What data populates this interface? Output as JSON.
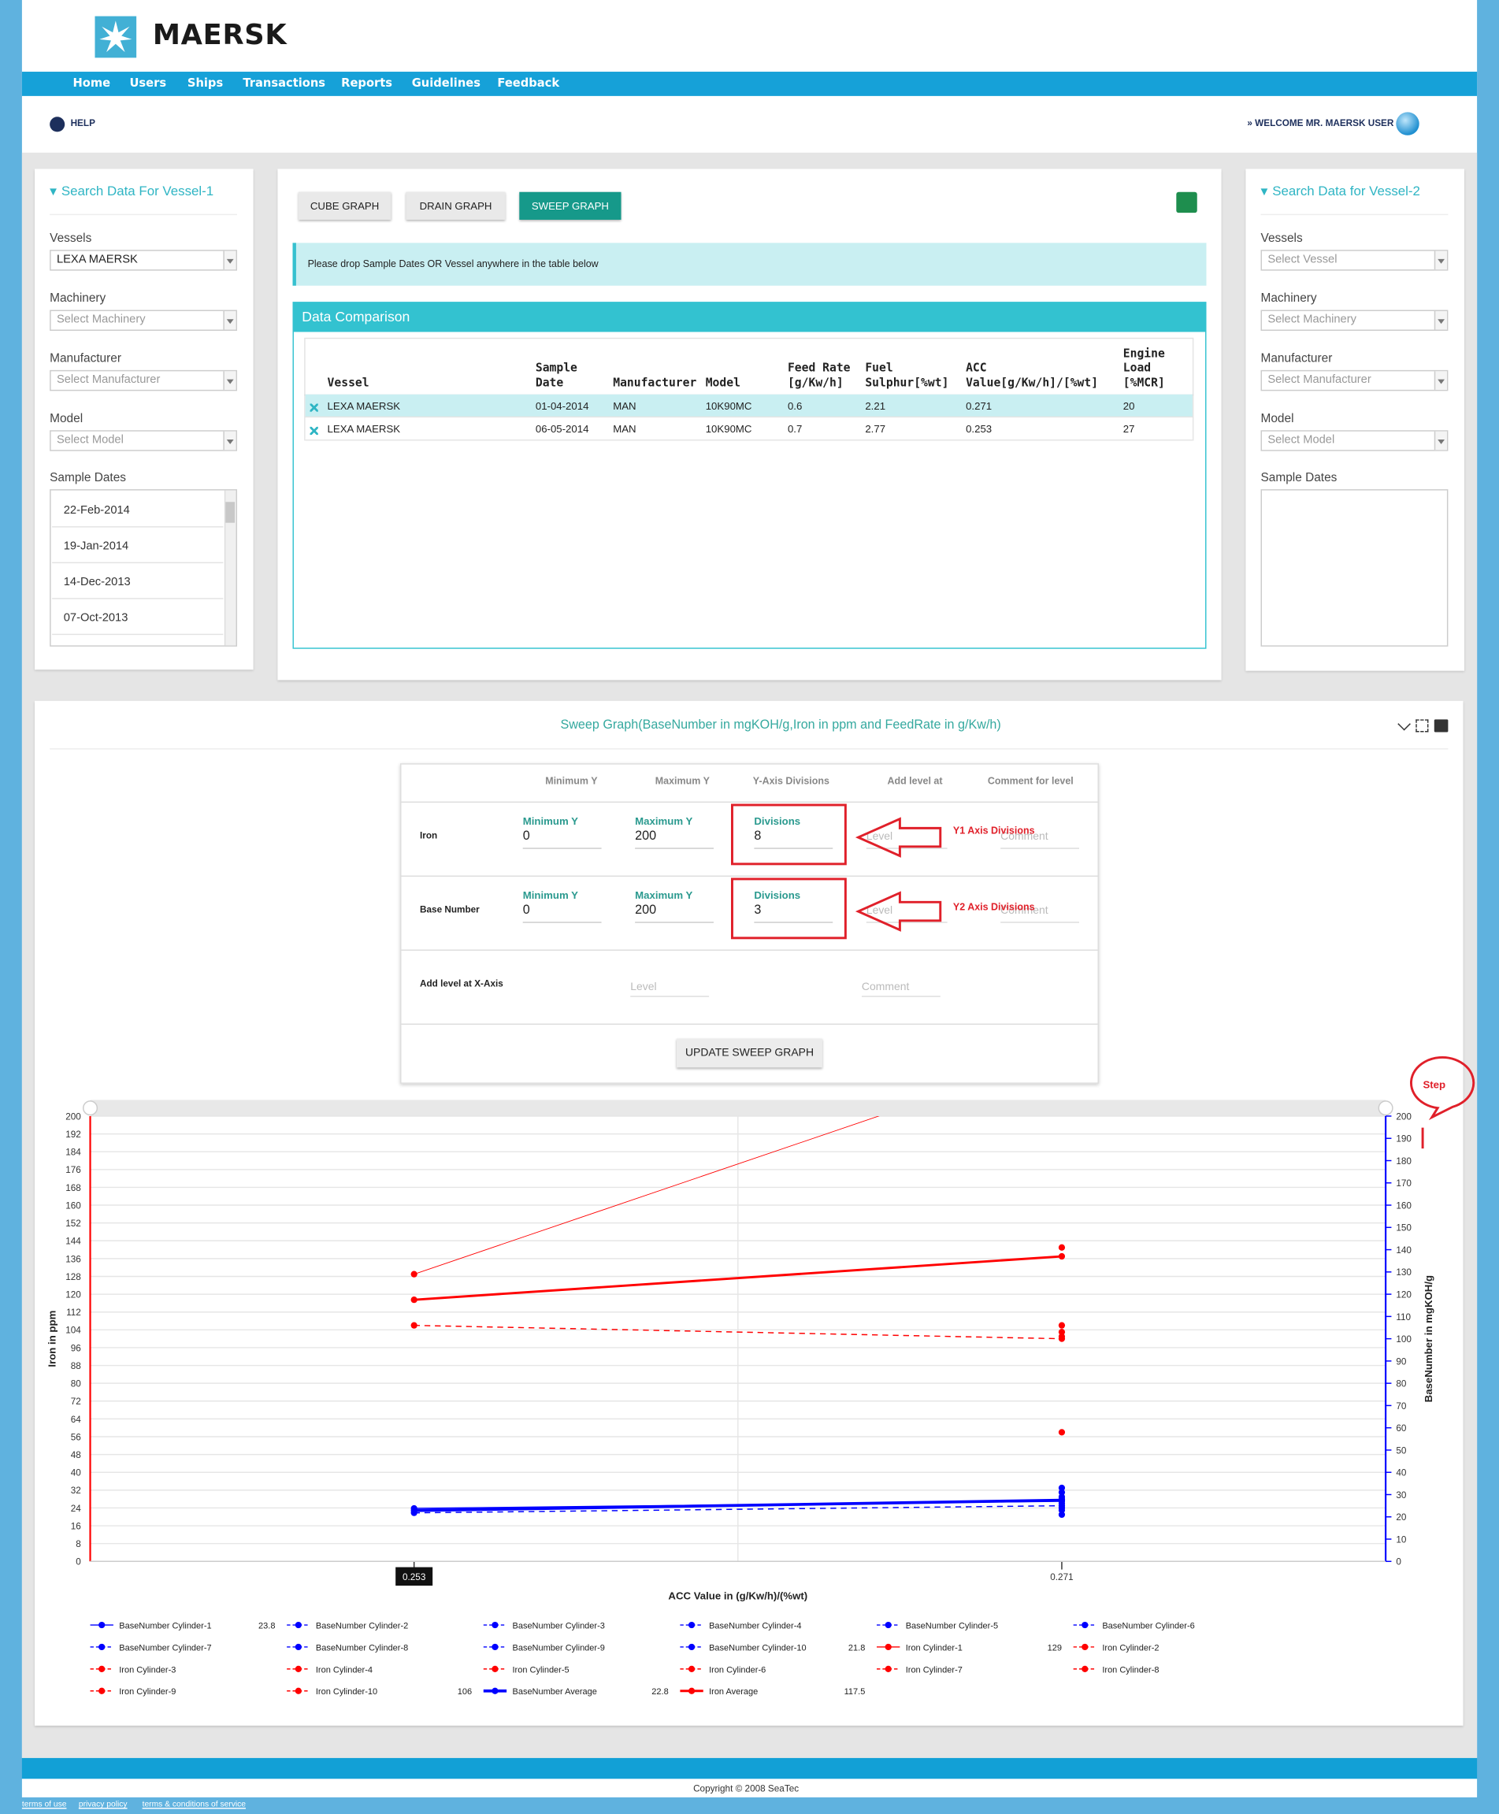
{
  "header": {
    "brand": "MAERSK",
    "nav": [
      "Home",
      "Users",
      "Ships",
      "Transactions",
      "Reports",
      "Guidelines",
      "Feedback"
    ],
    "help": "HELP",
    "welcome": "» WELCOME MR. MAERSK USER"
  },
  "vessel1": {
    "title": "Search Data For Vessel-1",
    "fields": [
      {
        "label": "Vessels",
        "value": "LEXA MAERSK"
      },
      {
        "label": "Machinery",
        "value": "Select Machinery"
      },
      {
        "label": "Manufacturer",
        "value": "Select Manufacturer"
      },
      {
        "label": "Model",
        "value": "Select Model"
      }
    ],
    "sample_dates_label": "Sample Dates",
    "sample_dates": [
      "22-Feb-2014",
      "19-Jan-2014",
      "14-Dec-2013",
      "07-Oct-2013"
    ]
  },
  "vessel2": {
    "title": "Search Data for Vessel-2",
    "fields": [
      {
        "label": "Vessels",
        "value": "Select Vessel"
      },
      {
        "label": "Machinery",
        "value": "Select Machinery"
      },
      {
        "label": "Manufacturer",
        "value": "Select Manufacturer"
      },
      {
        "label": "Model",
        "value": "Select Model"
      }
    ],
    "sample_dates_label": "Sample Dates"
  },
  "graph_buttons": [
    "CUBE GRAPH",
    "DRAIN GRAPH",
    "SWEEP GRAPH"
  ],
  "info": "Please drop Sample Dates OR Vessel anywhere in the table below",
  "comparison": {
    "title": "Data Comparison",
    "columns": [
      "Vessel",
      "Sample Date",
      "Manufacturer",
      "Model",
      "Feed Rate [g/Kw/h]",
      "Fuel Sulphur[%wt]",
      "ACC Value[g/Kw/h]/[%wt]",
      "Engine Load [%MCR]"
    ],
    "rows": [
      [
        "LEXA MAERSK",
        "01-04-2014",
        "MAN",
        "10K90MC",
        0.6,
        2.21,
        0.271,
        20
      ],
      [
        "LEXA MAERSK",
        "06-05-2014",
        "MAN",
        "10K90MC",
        0.7,
        2.77,
        0.253,
        27
      ]
    ]
  },
  "sweep": {
    "title": "Sweep Graph(BaseNumber in mgKOH/g,Iron in ppm and FeedRate in g/Kw/h)",
    "settings": {
      "columns": [
        "Minimum Y",
        "Maximum Y",
        "Y-Axis Divisions",
        "Add level at",
        "Comment for level"
      ],
      "rows": [
        {
          "name": "Iron",
          "min_label": "Minimum Y",
          "min": 0,
          "max_label": "Maximum Y",
          "max": 200,
          "div_label": "Divisions",
          "div": 8,
          "level": "Level",
          "comment": "Comment"
        },
        {
          "name": "Base Number",
          "min_label": "Minimum Y",
          "min": 0,
          "max_label": "Maximum Y",
          "max": 200,
          "div_label": "Divisions",
          "div": 3,
          "level": "Level",
          "comment": "Comment"
        }
      ],
      "x_level": {
        "name": "Add level at X-Axis",
        "level": "Level",
        "comment": "Comment"
      },
      "button": "UPDATE SWEEP GRAPH"
    },
    "annotations": [
      "Y1 Axis Divisions",
      "Y2 Axis Divisions",
      "Step"
    ]
  },
  "chart_data": {
    "type": "line",
    "x_label": "ACC Value in (g/Kw/h)/(%wt)",
    "y_label": "Iron in ppm",
    "y2_label": "BaseNumber in mgKOH/g",
    "x": [
      0.253,
      0.271
    ],
    "xlim": [
      0.244,
      0.28
    ],
    "xticks": [
      0.253,
      0.271
    ],
    "ylim": [
      0,
      200
    ],
    "yticks": [
      0,
      8,
      16,
      24,
      32,
      40,
      48,
      56,
      64,
      72,
      80,
      88,
      96,
      104,
      112,
      120,
      128,
      136,
      144,
      152,
      160,
      168,
      176,
      184,
      192,
      200
    ],
    "y2lim": [
      0,
      200
    ],
    "y2ticks": [
      0,
      10,
      20,
      30,
      40,
      50,
      60,
      70,
      80,
      90,
      100,
      110,
      120,
      130,
      140,
      150,
      160,
      170,
      180,
      190,
      200
    ],
    "grid": true,
    "series": [
      {
        "name": "BaseNumber Cylinder-1",
        "color": "#0000ff",
        "axis": "y2",
        "line_width": 1,
        "dashed": false,
        "values": [
          23.8,
          27
        ]
      },
      {
        "name": "BaseNumber Cylinder-2",
        "color": "#0000ff",
        "axis": "y2",
        "line_width": 1,
        "dashed": true,
        "values": [
          null,
          33
        ]
      },
      {
        "name": "BaseNumber Cylinder-3",
        "color": "#0000ff",
        "axis": "y2",
        "line_width": 1,
        "dashed": true,
        "values": [
          null,
          31
        ]
      },
      {
        "name": "BaseNumber Cylinder-4",
        "color": "#0000ff",
        "axis": "y2",
        "line_width": 1,
        "dashed": true,
        "values": [
          null,
          29
        ]
      },
      {
        "name": "BaseNumber Cylinder-5",
        "color": "#0000ff",
        "axis": "y2",
        "line_width": 1,
        "dashed": true,
        "values": [
          null,
          28
        ]
      },
      {
        "name": "BaseNumber Cylinder-6",
        "color": "#0000ff",
        "axis": "y2",
        "line_width": 1,
        "dashed": true,
        "values": [
          null,
          26
        ]
      },
      {
        "name": "BaseNumber Cylinder-7",
        "color": "#0000ff",
        "axis": "y2",
        "line_width": 1,
        "dashed": true,
        "values": [
          null,
          24
        ]
      },
      {
        "name": "BaseNumber Cylinder-8",
        "color": "#0000ff",
        "axis": "y2",
        "line_width": 1,
        "dashed": true,
        "values": [
          null,
          23
        ]
      },
      {
        "name": "BaseNumber Cylinder-9",
        "color": "#0000ff",
        "axis": "y2",
        "line_width": 1,
        "dashed": true,
        "values": [
          null,
          21
        ]
      },
      {
        "name": "BaseNumber Cylinder-10",
        "color": "#0000ff",
        "axis": "y2",
        "line_width": 1,
        "dashed": true,
        "values": [
          21.8,
          25
        ]
      },
      {
        "name": "Iron Cylinder-1",
        "color": "#ff0000",
        "axis": "y",
        "line_width": 0.6,
        "dashed": false,
        "values": [
          129,
          228
        ]
      },
      {
        "name": "Iron Cylinder-2",
        "color": "#ff0000",
        "axis": "y",
        "line_width": 1,
        "dashed": true,
        "values": [
          null,
          141
        ]
      },
      {
        "name": "Iron Cylinder-3",
        "color": "#ff0000",
        "axis": "y",
        "line_width": 1,
        "dashed": true,
        "values": [
          null,
          106
        ]
      },
      {
        "name": "Iron Cylinder-4",
        "color": "#ff0000",
        "axis": "y",
        "line_width": 1,
        "dashed": true,
        "values": [
          null,
          103
        ]
      },
      {
        "name": "Iron Cylinder-5",
        "color": "#ff0000",
        "axis": "y",
        "line_width": 1,
        "dashed": true,
        "values": [
          null,
          101
        ]
      },
      {
        "name": "Iron Cylinder-6",
        "color": "#ff0000",
        "axis": "y",
        "line_width": 1,
        "dashed": true,
        "values": [
          null,
          58
        ]
      },
      {
        "name": "Iron Cylinder-7",
        "color": "#ff0000",
        "axis": "y",
        "line_width": 1,
        "dashed": true,
        "values": [
          null,
          null
        ]
      },
      {
        "name": "Iron Cylinder-8",
        "color": "#ff0000",
        "axis": "y",
        "line_width": 1,
        "dashed": true,
        "values": [
          null,
          null
        ]
      },
      {
        "name": "Iron Cylinder-9",
        "color": "#ff0000",
        "axis": "y",
        "line_width": 1,
        "dashed": true,
        "values": [
          null,
          null
        ]
      },
      {
        "name": "Iron Cylinder-10",
        "color": "#ff0000",
        "axis": "y",
        "line_width": 1,
        "dashed": true,
        "values": [
          106,
          100
        ]
      },
      {
        "name": "BaseNumber Average",
        "color": "#0000ff",
        "axis": "y2",
        "line_width": 2.5,
        "dashed": false,
        "values": [
          22.8,
          27.5
        ]
      },
      {
        "name": "Iron Average",
        "color": "#ff0000",
        "axis": "y",
        "line_width": 2,
        "dashed": false,
        "values": [
          117.5,
          137
        ]
      }
    ]
  },
  "footer": {
    "copyright": "Copyright © 2008 SeaTec",
    "links": [
      "terms of use",
      "privacy policy",
      "terms & conditions of service"
    ]
  }
}
